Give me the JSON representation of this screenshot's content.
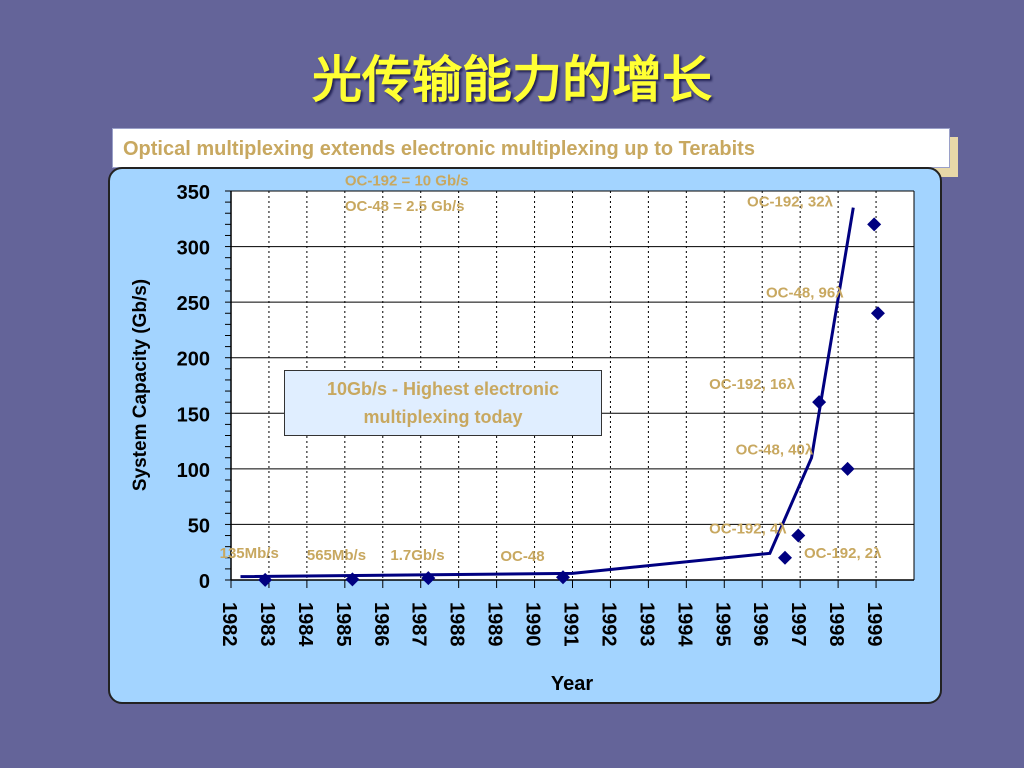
{
  "slide": {
    "title": "光传输能力的增长",
    "banner": "Optical multiplexing extends electronic multiplexing up to Terabits",
    "callout": "10Gb/s - Highest electronic multiplexing today",
    "colors": {
      "background": "#646499",
      "title": "#ffff33",
      "label": "#c8a860",
      "series": "#000080",
      "panel": "#a3d4ff"
    }
  },
  "chart_data": {
    "type": "scatter",
    "xlabel": "Year",
    "ylabel": "System Capacity (Gb/s)",
    "xlim": [
      1982,
      2000
    ],
    "ylim": [
      0,
      350
    ],
    "x_ticks": [
      1982,
      1983,
      1984,
      1985,
      1986,
      1987,
      1988,
      1989,
      1990,
      1991,
      1992,
      1993,
      1994,
      1995,
      1996,
      1997,
      1998,
      1999
    ],
    "y_ticks": [
      0,
      50,
      100,
      150,
      200,
      250,
      300,
      350
    ],
    "grid": true,
    "line": {
      "x": [
        1982.25,
        1991,
        1996.2,
        1997.3,
        1998.4
      ],
      "y": [
        3,
        6,
        24,
        110,
        335
      ]
    },
    "points": {
      "x": [
        1982.9,
        1985.2,
        1987.2,
        1990.75,
        1996.6,
        1996.95,
        1997.5,
        1998.25,
        1998.95,
        1999.05
      ],
      "y": [
        0.135,
        0.565,
        1.7,
        2.5,
        20,
        40,
        160,
        100,
        320,
        240
      ]
    },
    "annotations": [
      {
        "text": "OC-192 = 10 Gb/s",
        "x": 1985.0,
        "y": 355
      },
      {
        "text": "OC-48 = 2.5 Gb/s",
        "x": 1985.0,
        "y": 332
      },
      {
        "text": "135Mb/s",
        "x": 1981.7,
        "y": 20
      },
      {
        "text": "565Mb/s",
        "x": 1984.0,
        "y": 18
      },
      {
        "text": "1.7Gb/s",
        "x": 1986.2,
        "y": 18
      },
      {
        "text": "OC-48",
        "x": 1989.1,
        "y": 17
      },
      {
        "text": "OC-192, 32λ",
        "x": 1995.6,
        "y": 336
      },
      {
        "text": "OC-48, 96λ",
        "x": 1996.1,
        "y": 254
      },
      {
        "text": "OC-192, 16λ",
        "x": 1994.6,
        "y": 172
      },
      {
        "text": "OC-48, 40λ",
        "x": 1995.3,
        "y": 113
      },
      {
        "text": "OC-192, 4λ",
        "x": 1994.6,
        "y": 42
      },
      {
        "text": "OC-192, 2λ",
        "x": 1997.1,
        "y": 20
      }
    ]
  }
}
